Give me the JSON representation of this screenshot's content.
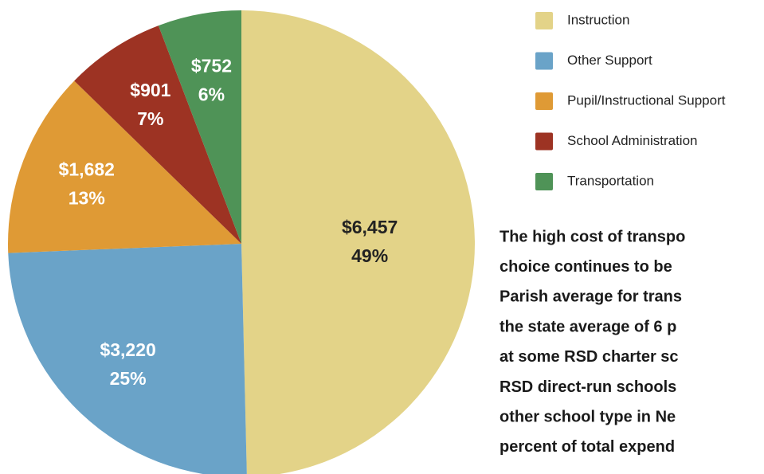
{
  "chart_data": {
    "type": "pie",
    "categories": [
      "Instruction",
      "Other Support",
      "Pupil/Instructional Support",
      "School Administration",
      "Transportation"
    ],
    "values": [
      6457,
      3220,
      1682,
      901,
      752
    ],
    "value_labels": [
      "$6,457",
      "$3,220",
      "$1,682",
      "$901",
      "$752"
    ],
    "percents": [
      49,
      25,
      13,
      7,
      6
    ],
    "percent_labels": [
      "49%",
      "25%",
      "13%",
      "7%",
      "6%"
    ],
    "colors": [
      "#e3d388",
      "#6aa3c8",
      "#df9a35",
      "#9d3323",
      "#4f9357"
    ],
    "legend": "right"
  },
  "text": {
    "lines": [
      "The high cost of transpo",
      "choice continues to be",
      "Parish average for trans",
      "the state average of 6 p",
      "at some RSD charter sc",
      "RSD direct-run schools",
      "other school type in Ne",
      "percent of total expend"
    ]
  }
}
